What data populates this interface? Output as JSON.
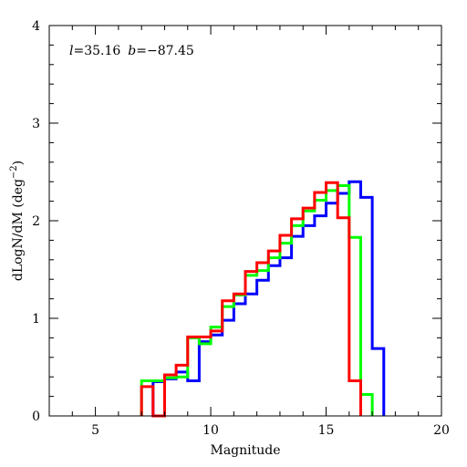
{
  "chart_data": {
    "type": "line",
    "step": true,
    "xlabel": "Magnitude",
    "ylabel": "dLogN/dM (deg⁻²)",
    "xlim": [
      3,
      20
    ],
    "ylim": [
      0,
      4
    ],
    "xticks": [
      5,
      10,
      15,
      20
    ],
    "yticks": [
      0,
      1,
      2,
      3,
      4
    ],
    "x_minor_step": 1,
    "y_minor_step": 0.2,
    "grid": false,
    "annotation": {
      "l_symbol": "l",
      "l_value": "=35.16",
      "b_symbol": "b",
      "b_value": "=−87.45"
    },
    "series": [
      {
        "color": "#0000ff",
        "edges": [
          7.5,
          8.0,
          8.5,
          9.0,
          9.5,
          10.0,
          10.5,
          11.0,
          11.5,
          12.0,
          12.5,
          13.0,
          13.5,
          14.0,
          14.5,
          15.0,
          15.5,
          16.0,
          16.5,
          17.0,
          17.5
        ],
        "values": [
          0.35,
          0.38,
          0.45,
          0.36,
          0.76,
          0.83,
          0.98,
          1.15,
          1.25,
          1.39,
          1.54,
          1.62,
          1.84,
          1.95,
          2.05,
          2.18,
          2.28,
          2.4,
          2.24,
          0.69
        ]
      },
      {
        "color": "#00ff00",
        "edges": [
          7.0,
          7.5,
          8.0,
          8.5,
          9.0,
          9.5,
          10.0,
          10.5,
          11.0,
          11.5,
          12.0,
          12.5,
          13.0,
          13.5,
          14.0,
          14.5,
          15.0,
          15.5,
          16.0,
          16.5,
          17.0
        ],
        "values": [
          0.36,
          0.36,
          0.39,
          0.4,
          0.8,
          0.74,
          0.91,
          1.12,
          1.24,
          1.44,
          1.49,
          1.62,
          1.77,
          1.95,
          2.1,
          2.21,
          2.31,
          2.36,
          1.83,
          0.22
        ]
      },
      {
        "color": "#ff0000",
        "edges": [
          7.0,
          7.5,
          8.0,
          8.5,
          9.0,
          9.5,
          10.0,
          10.5,
          11.0,
          11.5,
          12.0,
          12.5,
          13.0,
          13.5,
          14.0,
          14.5,
          15.0,
          15.5,
          16.0,
          16.5
        ],
        "values": [
          0.3,
          0.0,
          0.42,
          0.52,
          0.81,
          0.81,
          0.87,
          1.18,
          1.25,
          1.48,
          1.57,
          1.69,
          1.85,
          2.02,
          2.13,
          2.29,
          2.39,
          2.03,
          0.36
        ]
      }
    ]
  }
}
